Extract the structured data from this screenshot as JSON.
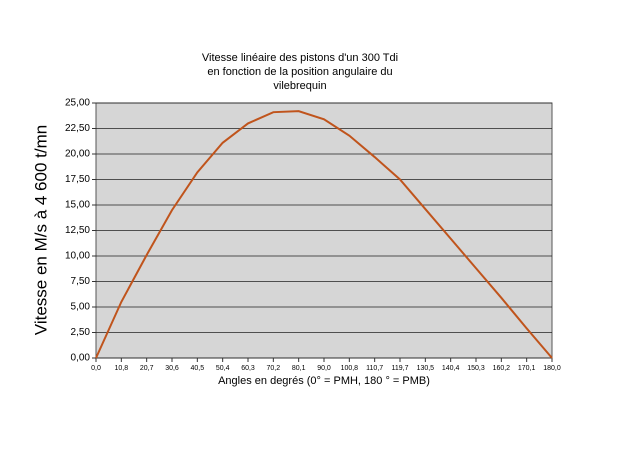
{
  "chart_data": {
    "type": "line",
    "title": [
      "Vitesse linéaire des pistons d'un 300 Tdi",
      "en fonction de la position angulaire du",
      "vilebrequin"
    ],
    "x_label": "Angles en degrés (0° = PMH, 180 ° = PMB)",
    "y_label": "Vitesse en M/s à 4 600 t/mn",
    "categories": [
      "0,0",
      "10,8",
      "20,7",
      "30,6",
      "40,5",
      "50,4",
      "60,3",
      "70,2",
      "80,1",
      "90,0",
      "100,8",
      "110,7",
      "119,7",
      "130,5",
      "140,4",
      "150,3",
      "160,2",
      "170,1",
      "180,0"
    ],
    "values": [
      0,
      5.5,
      10.1,
      14.5,
      18.2,
      21.1,
      23.0,
      24.1,
      24.2,
      23.4,
      21.8,
      19.7,
      17.5,
      14.6,
      11.7,
      8.8,
      5.9,
      2.9,
      0
    ],
    "color": "#c0541c",
    "ylim": [
      0,
      25
    ],
    "yticks": [
      {
        "value": 0,
        "label": "0,00"
      },
      {
        "value": 2.5,
        "label": "2,50"
      },
      {
        "value": 5,
        "label": "5,00"
      },
      {
        "value": 7.5,
        "label": "7,50"
      },
      {
        "value": 10,
        "label": "10,00"
      },
      {
        "value": 12.5,
        "label": "12,50"
      },
      {
        "value": 15,
        "label": "15,00"
      },
      {
        "value": 17.5,
        "label": "17,50"
      },
      {
        "value": 20,
        "label": "20,00"
      },
      {
        "value": 22.5,
        "label": "22,50"
      },
      {
        "value": 25,
        "label": "25,00"
      }
    ],
    "grid": true
  }
}
